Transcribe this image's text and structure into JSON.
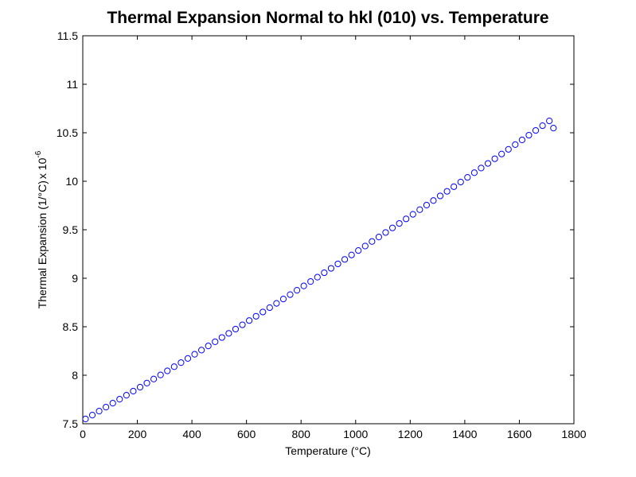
{
  "chart_data": {
    "type": "scatter",
    "title": "Thermal Expansion Normal to hkl (010) vs. Temperature",
    "xlabel": "Temperature (°C)",
    "ylabel": "Thermal Expansion (1/°C)",
    "ylabel_multiplier": "x 10",
    "ylabel_exponent": "-6",
    "xlim": [
      0,
      1800
    ],
    "ylim": [
      7.5,
      11.5
    ],
    "xticks": [
      0,
      200,
      400,
      600,
      800,
      1000,
      1200,
      1400,
      1600,
      1800
    ],
    "yticks": [
      7.5,
      8,
      8.5,
      9,
      9.5,
      10,
      10.5,
      11,
      11.5
    ],
    "xtick_labels": [
      "0",
      "200",
      "400",
      "600",
      "800",
      "1000",
      "1200",
      "1400",
      "1600",
      "1800"
    ],
    "ytick_labels": [
      "7.5",
      "8",
      "8.5",
      "9",
      "9.5",
      "10",
      "10.5",
      "11",
      "11.5"
    ],
    "marker": "circle",
    "grid": false,
    "series_color": "#0000ff",
    "x": [
      10,
      35,
      60,
      85,
      110,
      135,
      160,
      185,
      210,
      235,
      260,
      285,
      310,
      335,
      360,
      385,
      410,
      435,
      460,
      485,
      510,
      535,
      560,
      585,
      610,
      635,
      660,
      685,
      710,
      735,
      760,
      785,
      810,
      835,
      860,
      885,
      910,
      935,
      960,
      985,
      1010,
      1035,
      1060,
      1085,
      1110,
      1135,
      1160,
      1185,
      1210,
      1235,
      1260,
      1285,
      1310,
      1335,
      1360,
      1385,
      1410,
      1435,
      1460,
      1485,
      1510,
      1535,
      1560,
      1585,
      1610,
      1635,
      1660,
      1685,
      1710,
      1725
    ],
    "y": [
      7.549,
      7.589,
      7.63,
      7.671,
      7.712,
      7.753,
      7.794,
      7.836,
      7.877,
      7.919,
      7.961,
      8.003,
      8.045,
      8.088,
      8.13,
      8.173,
      8.216,
      8.259,
      8.302,
      8.345,
      8.389,
      8.432,
      8.476,
      8.52,
      8.564,
      8.608,
      8.652,
      8.697,
      8.741,
      8.786,
      8.831,
      8.876,
      8.921,
      8.966,
      9.011,
      9.057,
      9.102,
      9.148,
      9.194,
      9.24,
      9.286,
      9.332,
      9.379,
      9.425,
      9.472,
      9.519,
      9.565,
      9.612,
      9.659,
      9.707,
      9.754,
      9.801,
      9.849,
      9.896,
      9.944,
      9.992,
      10.04,
      10.088,
      10.136,
      10.184,
      10.232,
      10.281,
      10.329,
      10.378,
      10.426,
      10.475,
      10.524,
      10.573,
      10.622,
      10.548
    ]
  }
}
